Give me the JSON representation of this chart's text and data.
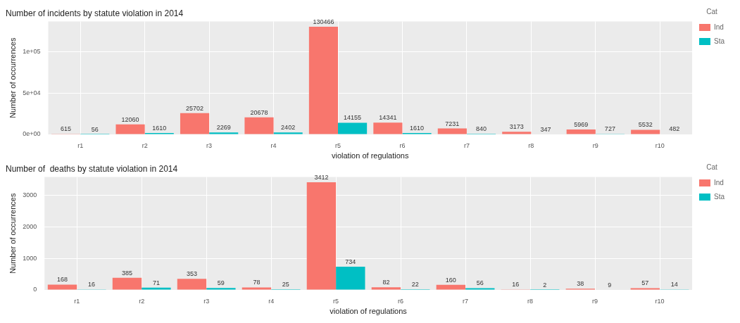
{
  "chart_data": [
    {
      "type": "bar",
      "title": "Number of incidents by statute violation in 2014",
      "xlabel": "violation of regulations",
      "ylabel": "Number of occurrences",
      "legend_title": "Cat",
      "categories": [
        "r1",
        "r2",
        "r3",
        "r4",
        "r5",
        "r6",
        "r7",
        "r8",
        "r9",
        "r10"
      ],
      "series": [
        {
          "name": "Ind",
          "color": "#f8766d",
          "values": [
            615,
            12060,
            25702,
            20678,
            130466,
            14341,
            7231,
            3173,
            5969,
            5532
          ]
        },
        {
          "name": "Sta",
          "color": "#00bfc4",
          "values": [
            56,
            1610,
            2269,
            2402,
            14155,
            1610,
            840,
            347,
            727,
            482
          ]
        }
      ],
      "ylim": [
        0,
        137000
      ],
      "yticks": [
        {
          "value": 0,
          "label": "0e+00"
        },
        {
          "value": 50000,
          "label": "5e+04"
        },
        {
          "value": 100000,
          "label": "1e+05"
        }
      ],
      "grid": true,
      "legend": "right",
      "data_labels": true
    },
    {
      "type": "bar",
      "title": "Number of  deaths by statute violation in 2014",
      "xlabel": "violation of regulations",
      "ylabel": "Number of occurrences",
      "legend_title": "Cat",
      "categories": [
        "r1",
        "r2",
        "r3",
        "r4",
        "r5",
        "r6",
        "r7",
        "r8",
        "r9",
        "r10"
      ],
      "series": [
        {
          "name": "Ind",
          "color": "#f8766d",
          "values": [
            168,
            385,
            353,
            78,
            3412,
            82,
            160,
            16,
            38,
            57
          ]
        },
        {
          "name": "Sta",
          "color": "#00bfc4",
          "values": [
            16,
            71,
            59,
            25,
            734,
            22,
            56,
            2,
            9,
            14
          ]
        }
      ],
      "ylim": [
        0,
        3580
      ],
      "yticks": [
        0,
        1000,
        2000,
        3000
      ],
      "grid": true,
      "legend": "right",
      "data_labels": true
    }
  ]
}
